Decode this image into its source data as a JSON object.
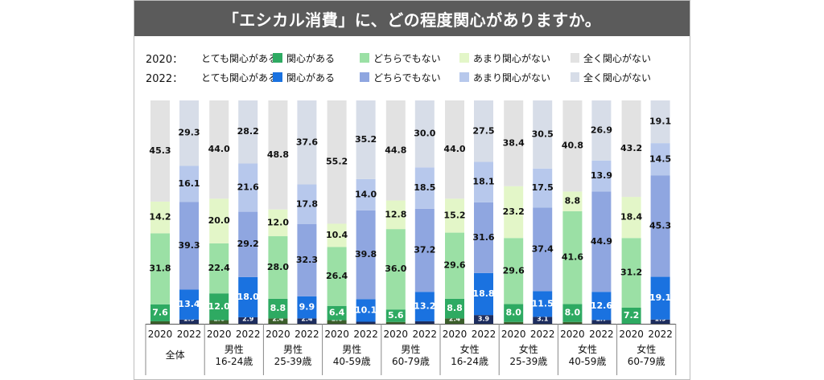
{
  "title": "「エシカル消費」に、どの程度関心がありますか。",
  "legend": {
    "rows": [
      {
        "year": "2020：",
        "items": [
          {
            "label": "とても関心がある",
            "color": "#3b5e2b"
          },
          {
            "label": "関心がある",
            "color": "#2eaa62"
          },
          {
            "label": "どちらでもない",
            "color": "#9be0a5"
          },
          {
            "label": "あまり関心がない",
            "color": "#e3f6c8"
          },
          {
            "label": "全く関心がない",
            "color": "#e2e2e2"
          }
        ]
      },
      {
        "year": "2022：",
        "items": [
          {
            "label": "とても関心がある",
            "color": "#1d2d5e"
          },
          {
            "label": "関心がある",
            "color": "#1a72e0"
          },
          {
            "label": "どちらでもない",
            "color": "#8fa6e0"
          },
          {
            "label": "あまり関心がない",
            "color": "#b7c8ec"
          },
          {
            "label": "全く関心がない",
            "color": "#d7dde8"
          }
        ]
      }
    ]
  },
  "chart_data": {
    "type": "bar",
    "stacked": true,
    "title": "「エシカル消費」に、どの程度関心がありますか。",
    "series_order": [
      "とても関心がある",
      "関心がある",
      "どちらでもない",
      "あまり関心がない",
      "全く関心がない"
    ],
    "colors": {
      "2020": [
        "#3b5e2b",
        "#2eaa62",
        "#9be0a5",
        "#e3f6c8",
        "#e2e2e2"
      ],
      "2022": [
        "#1d2d5e",
        "#1a72e0",
        "#8fa6e0",
        "#b7c8ec",
        "#d7dde8"
      ]
    },
    "groups": [
      {
        "label": [
          "全体"
        ],
        "bars": [
          {
            "year": "2020",
            "values": [
              1.1,
              7.6,
              31.8,
              14.2,
              45.3
            ]
          },
          {
            "year": "2022",
            "values": [
              1.9,
              13.4,
              39.3,
              16.1,
              29.3
            ]
          }
        ]
      },
      {
        "label": [
          "男性",
          "16-24歳"
        ],
        "bars": [
          {
            "year": "2020",
            "values": [
              1.6,
              12.0,
              22.4,
              20.0,
              44.0
            ]
          },
          {
            "year": "2022",
            "values": [
              2.9,
              18.0,
              29.2,
              21.6,
              28.2
            ]
          }
        ]
      },
      {
        "label": [
          "男性",
          "25-39歳"
        ],
        "bars": [
          {
            "year": "2020",
            "values": [
              2.4,
              8.8,
              28.0,
              12.0,
              48.8
            ]
          },
          {
            "year": "2022",
            "values": [
              2.4,
              9.9,
              32.3,
              17.8,
              37.6
            ]
          }
        ]
      },
      {
        "label": [
          "男性",
          "40-59歳"
        ],
        "bars": [
          {
            "year": "2020",
            "values": [
              1.6,
              6.4,
              26.4,
              10.4,
              55.2
            ]
          },
          {
            "year": "2022",
            "values": [
              0.9,
              10.1,
              39.8,
              14.0,
              35.2
            ]
          }
        ]
      },
      {
        "label": [
          "男性",
          "60-79歳"
        ],
        "bars": [
          {
            "year": "2020",
            "values": [
              0.8,
              5.6,
              36.0,
              12.8,
              44.8
            ]
          },
          {
            "year": "2022",
            "values": [
              1.1,
              13.2,
              37.2,
              18.5,
              30.0
            ]
          }
        ]
      },
      {
        "label": [
          "女性",
          "16-24歳"
        ],
        "bars": [
          {
            "year": "2020",
            "values": [
              2.4,
              8.8,
              29.6,
              15.2,
              44.0
            ]
          },
          {
            "year": "2022",
            "values": [
              3.9,
              18.8,
              31.6,
              18.1,
              27.5
            ]
          }
        ]
      },
      {
        "label": [
          "女性",
          "25-39歳"
        ],
        "bars": [
          {
            "year": "2020",
            "values": [
              0.8,
              8.0,
              29.6,
              23.2,
              38.4
            ]
          },
          {
            "year": "2022",
            "values": [
              3.1,
              11.5,
              37.4,
              17.5,
              30.5
            ]
          }
        ]
      },
      {
        "label": [
          "女性",
          "40-59歳"
        ],
        "bars": [
          {
            "year": "2020",
            "values": [
              0.8,
              8.0,
              41.6,
              8.8,
              40.8
            ]
          },
          {
            "year": "2022",
            "values": [
              1.7,
              12.6,
              44.9,
              13.9,
              26.9
            ]
          }
        ]
      },
      {
        "label": [
          "女性",
          "60-79歳"
        ],
        "bars": [
          {
            "year": "2020",
            "values": [
              0.0,
              7.2,
              31.2,
              18.4,
              43.2
            ]
          },
          {
            "year": "2022",
            "values": [
              1.9,
              19.1,
              45.3,
              14.5,
              19.1
            ]
          }
        ]
      }
    ],
    "ylim": [
      0,
      100
    ]
  }
}
